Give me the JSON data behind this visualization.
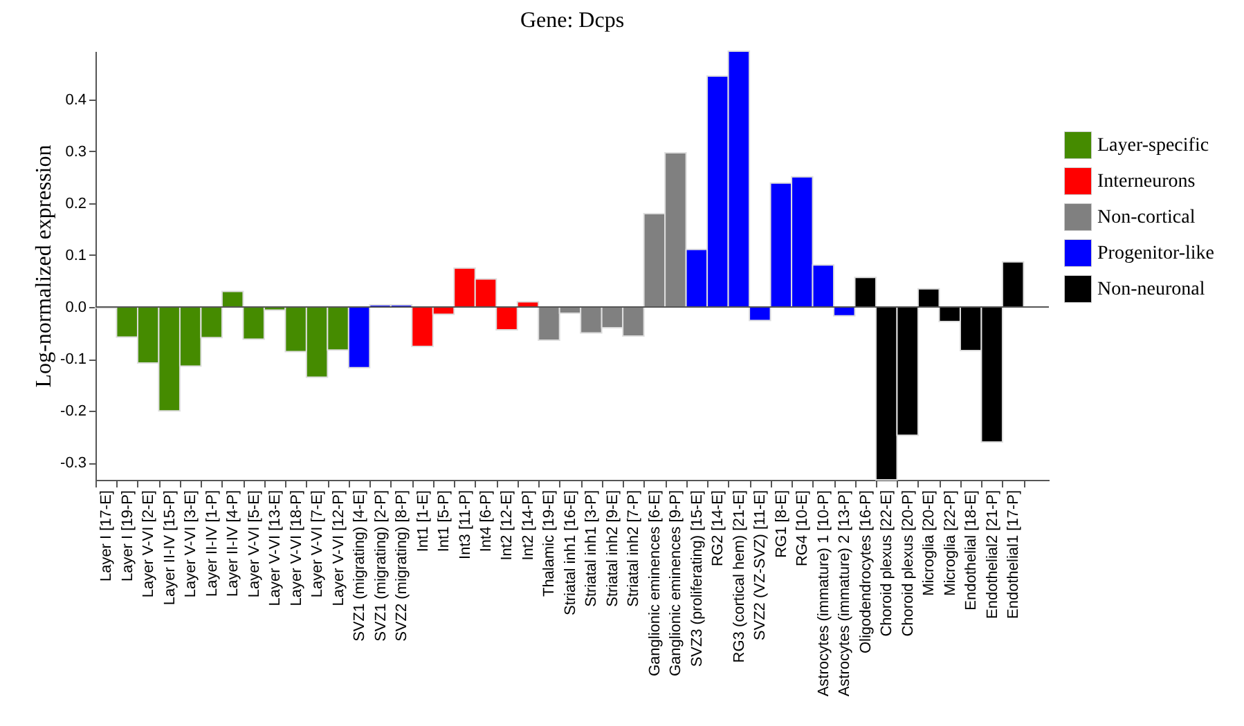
{
  "chart_data": {
    "type": "bar",
    "title": "Gene: Dcps",
    "ylabel": "Log-normalized expression",
    "categories": [
      "Layer I [17-E]",
      "Layer I [19-P]",
      "Layer V-VI [2-E]",
      "Layer II-IV [15-P]",
      "Layer V-VI [3-E]",
      "Layer II-IV [1-P]",
      "Layer II-IV [4-P]",
      "Layer V-VI [5-E]",
      "Layer V-VI [13-E]",
      "Layer V-VI [18-P]",
      "Layer V-VI [7-E]",
      "Layer V-VI [12-P]",
      "SVZ1 (migrating) [4-E]",
      "SVZ1 (migrating) [2-P]",
      "SVZ2 (migrating) [8-P]",
      "Int1 [1-E]",
      "Int1 [5-P]",
      "Int3 [11-P]",
      "Int4 [6-P]",
      "Int2 [12-E]",
      "Int2 [14-P]",
      "Thalamic [19-E]",
      "Striatal inh1 [16-E]",
      "Striatal inh1 [3-P]",
      "Striatal inh2 [9-E]",
      "Striatal inh2 [7-P]",
      "Ganglionic eminences [6-E]",
      "Ganglionic eminences [9-P]",
      "SVZ3 (proliferating) [15-E]",
      "RG2 [14-E]",
      "RG3 (cortical hem) [21-E]",
      "SVZ2 (VZ-SVZ) [11-E]",
      "RG1 [8-E]",
      "RG4 [10-E]",
      "Astrocytes (immature) 1 [10-P]",
      "Astrocytes (immature) 2 [13-P]",
      "Oligodendrocytes [16-P]",
      "Choroid plexus [22-E]",
      "Choroid plexus [20-P]",
      "Microglia [20-E]",
      "Microglia [22-P]",
      "Endothelial [18-E]",
      "Endothelial2 [21-P]",
      "Endothelial1 [17-P]"
    ],
    "series": [
      {
        "name": "Layer-specific",
        "color": "#458b00",
        "values": [
          -0.002,
          -0.058,
          -0.108,
          -0.2,
          -0.114,
          -0.059,
          0.03,
          -0.062,
          -0.006,
          -0.086,
          -0.135,
          -0.083,
          null,
          null,
          null,
          null,
          null,
          null,
          null,
          null,
          null,
          null,
          null,
          null,
          null,
          null,
          null,
          null,
          null,
          null,
          null,
          null,
          null,
          null,
          null,
          null,
          null,
          null,
          null,
          null,
          null,
          null,
          null,
          null
        ]
      },
      {
        "name": "Interneurons",
        "color": "#ff0000",
        "values": [
          null,
          null,
          null,
          null,
          null,
          null,
          null,
          null,
          null,
          null,
          null,
          null,
          null,
          null,
          null,
          -0.076,
          -0.014,
          0.075,
          0.054,
          -0.044,
          0.01,
          null,
          null,
          null,
          null,
          null,
          null,
          null,
          null,
          null,
          null,
          null,
          null,
          null,
          null,
          null,
          null,
          null,
          null,
          null,
          null,
          null,
          null,
          null
        ]
      },
      {
        "name": "Non-cortical",
        "color": "#808080",
        "values": [
          null,
          null,
          null,
          null,
          null,
          null,
          null,
          null,
          null,
          null,
          null,
          null,
          null,
          null,
          null,
          null,
          null,
          null,
          null,
          null,
          null,
          -0.064,
          -0.012,
          -0.05,
          -0.04,
          -0.056,
          0.18,
          0.297,
          null,
          null,
          null,
          null,
          null,
          null,
          null,
          null,
          null,
          null,
          null,
          null,
          null,
          null,
          null,
          null
        ]
      },
      {
        "name": "Progenitor-like",
        "color": "#0000ff",
        "values": [
          null,
          null,
          null,
          null,
          null,
          null,
          null,
          null,
          null,
          null,
          null,
          null,
          -0.117,
          0.004,
          0.004,
          null,
          null,
          null,
          null,
          null,
          null,
          null,
          null,
          null,
          null,
          null,
          null,
          null,
          0.111,
          0.445,
          0.493,
          -0.026,
          0.239,
          0.251,
          0.081,
          -0.017,
          null,
          null,
          null,
          null,
          null,
          null,
          null,
          null
        ]
      },
      {
        "name": "Non-neuronal",
        "color": "#000000",
        "values": [
          null,
          null,
          null,
          null,
          null,
          null,
          null,
          null,
          null,
          null,
          null,
          null,
          null,
          null,
          null,
          null,
          null,
          null,
          null,
          null,
          null,
          null,
          null,
          null,
          null,
          null,
          null,
          null,
          null,
          null,
          null,
          null,
          null,
          null,
          null,
          null,
          0.057,
          -0.333,
          -0.247,
          0.035,
          -0.028,
          -0.084,
          -0.26,
          0.087
        ]
      }
    ],
    "ylim": [
      -0.333,
      0.493
    ],
    "yticks": [
      -0.3,
      -0.2,
      -0.1,
      {
        "value": 0,
        "label": "0.0"
      },
      0.1,
      0.2,
      0.3,
      0.4
    ],
    "ref_lines": [
      {
        "axis": "y",
        "value": 0,
        "color": "#555555"
      }
    ],
    "legend": "right",
    "grid": false
  }
}
